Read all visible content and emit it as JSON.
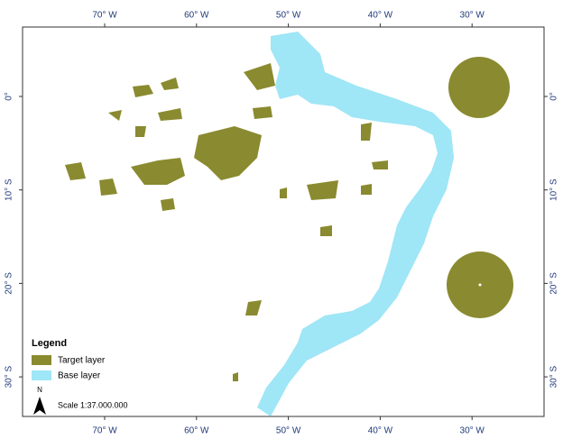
{
  "map": {
    "longitude_ticks": [
      {
        "value": -70,
        "label": "70° W"
      },
      {
        "value": -60,
        "label": "60° W"
      },
      {
        "value": -50,
        "label": "50° W"
      },
      {
        "value": -40,
        "label": "40° W"
      },
      {
        "value": -30,
        "label": "30° W"
      }
    ],
    "latitude_ticks": [
      {
        "value": 0,
        "label": "0°"
      },
      {
        "value": -10,
        "label": "10° S"
      },
      {
        "value": -20,
        "label": "20° S"
      },
      {
        "value": -30,
        "label": "30° S"
      }
    ],
    "legend": {
      "title": "Legend",
      "items": [
        {
          "name": "Target layer",
          "color": "#8a8a30"
        },
        {
          "name": "Base layer",
          "color": "#9fe6f6"
        }
      ]
    },
    "north": "N",
    "scale": "Scale 1:37.000.000"
  }
}
